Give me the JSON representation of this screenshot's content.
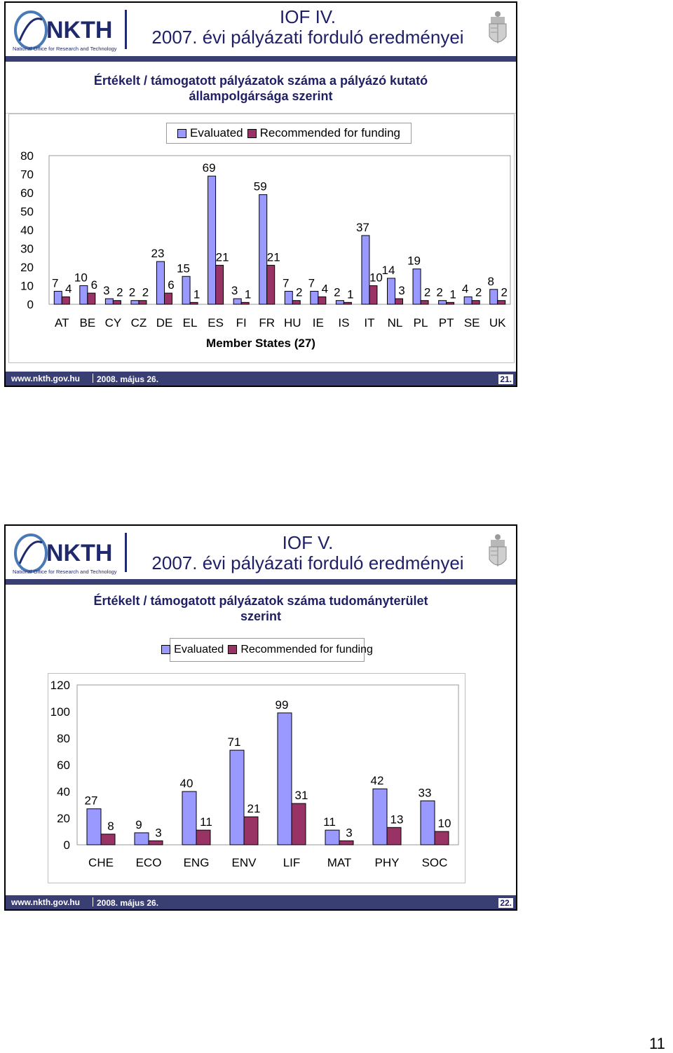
{
  "slides": [
    {
      "logo": {
        "text": "NKTH",
        "tagline": "National Office for Research and Technology"
      },
      "title_line1": "IOF IV.",
      "title_line2": "2007. évi pályázati forduló eredményei",
      "subtitle_line1": "Értékelt / támogatott pályázatok száma a  pályázó kutató",
      "subtitle_line2": "állampolgársága szerint",
      "footer": {
        "url": "www.nkth.gov.hu",
        "date": "2008. május 26.",
        "number": "21."
      },
      "chart_data": {
        "type": "bar",
        "categories": [
          "AT",
          "BE",
          "CY",
          "CZ",
          "DE",
          "EL",
          "ES",
          "FI",
          "FR",
          "HU",
          "IE",
          "IS",
          "IT",
          "NL",
          "PL",
          "PT",
          "SE",
          "UK"
        ],
        "series": [
          {
            "name": "Evaluated",
            "values": [
              7,
              10,
              3,
              2,
              23,
              15,
              69,
              3,
              59,
              7,
              7,
              2,
              37,
              14,
              19,
              2,
              4,
              8
            ]
          },
          {
            "name": "Recommended for funding",
            "values": [
              4,
              6,
              2,
              2,
              6,
              1,
              21,
              1,
              21,
              2,
              4,
              1,
              10,
              3,
              2,
              1,
              2,
              2
            ]
          }
        ],
        "xlabel": "Member States (27)",
        "ylabel": "",
        "ylim": [
          0,
          80
        ],
        "yticks": [
          0,
          10,
          20,
          30,
          40,
          50,
          60,
          70,
          80
        ],
        "legend": "top",
        "colors": [
          "#9999ff",
          "#993366"
        ]
      }
    },
    {
      "logo": {
        "text": "NKTH",
        "tagline": "National Office for Research and Technology"
      },
      "title_line1": "IOF V.",
      "title_line2": "2007. évi pályázati forduló eredményei",
      "subtitle_line1": "Értékelt / támogatott pályázatok száma tudományterület",
      "subtitle_line2": "szerint",
      "footer": {
        "url": "www.nkth.gov.hu",
        "date": "2008. május 26.",
        "number": "22."
      },
      "chart_data": {
        "type": "bar",
        "categories": [
          "CHE",
          "ECO",
          "ENG",
          "ENV",
          "LIF",
          "MAT",
          "PHY",
          "SOC"
        ],
        "series": [
          {
            "name": "Evaluated",
            "values": [
              27,
              9,
              40,
              71,
              99,
              11,
              42,
              33
            ]
          },
          {
            "name": "Recommended for funding",
            "values": [
              8,
              3,
              11,
              21,
              31,
              3,
              13,
              10
            ]
          }
        ],
        "xlabel": "",
        "ylabel": "",
        "ylim": [
          0,
          120
        ],
        "yticks": [
          0,
          20,
          40,
          60,
          80,
          100,
          120
        ],
        "legend": "top",
        "colors": [
          "#9999ff",
          "#993366"
        ]
      }
    }
  ],
  "page_number": "11"
}
